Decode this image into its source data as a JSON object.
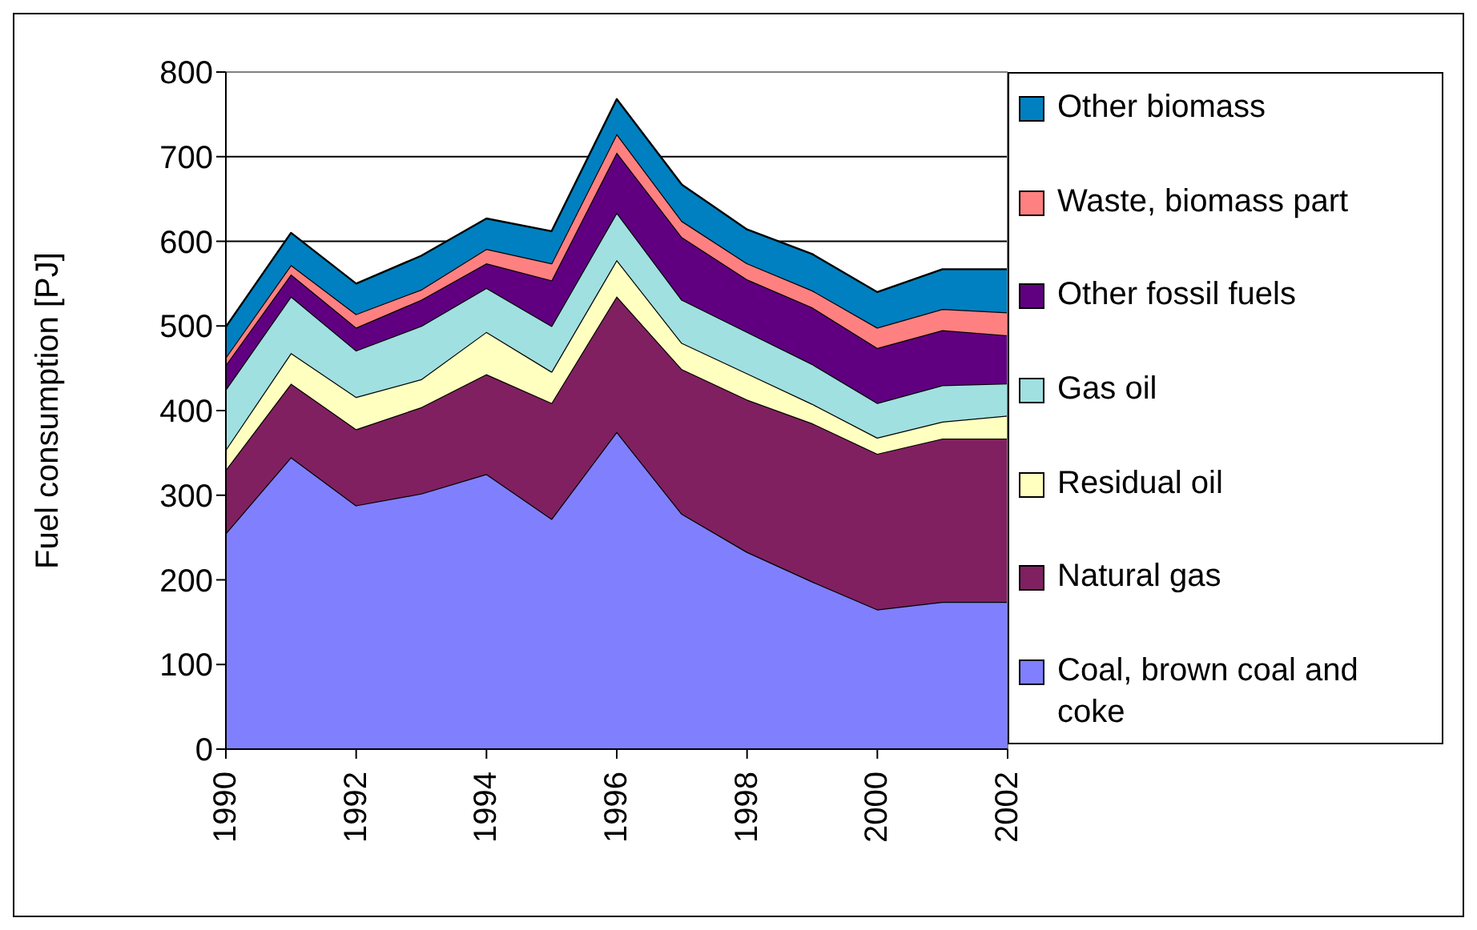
{
  "chart_data": {
    "type": "area",
    "stacked": true,
    "ylabel": "Fuel consumption [PJ]",
    "x": [
      1990,
      1991,
      1992,
      1993,
      1994,
      1995,
      1996,
      1997,
      1998,
      1999,
      2000,
      2001,
      2002
    ],
    "xlim": [
      1990,
      2002
    ],
    "xticks": [
      1990,
      1992,
      1994,
      1996,
      1998,
      2000,
      2002
    ],
    "ylim": [
      0,
      800
    ],
    "yticks": [
      0,
      100,
      200,
      300,
      400,
      500,
      600,
      700,
      800
    ],
    "grid": "y",
    "legend": "right",
    "series": [
      {
        "name": "Coal, brown coal and coke",
        "color": "#8080ff",
        "values": [
          255,
          345,
          288,
          302,
          325,
          272,
          375,
          278,
          233,
          198,
          165,
          174,
          174
        ]
      },
      {
        "name": "Natural gas",
        "color": "#802060",
        "values": [
          75,
          87,
          90,
          102,
          118,
          137,
          160,
          171,
          180,
          187,
          184,
          193,
          193
        ]
      },
      {
        "name": "Residual oil",
        "color": "#ffffc0",
        "values": [
          24,
          36,
          38,
          33,
          50,
          37,
          43,
          31,
          31,
          23,
          19,
          20,
          27
        ]
      },
      {
        "name": "Gas oil",
        "color": "#a0e0e0",
        "values": [
          71,
          67,
          55,
          63,
          52,
          54,
          56,
          51,
          49,
          47,
          41,
          43,
          38
        ]
      },
      {
        "name": "Other fossil fuels",
        "color": "#600080",
        "values": [
          29,
          26,
          27,
          31,
          29,
          54,
          71,
          74,
          62,
          67,
          65,
          65,
          57
        ]
      },
      {
        "name": "Waste, biomass part",
        "color": "#ff8080",
        "values": [
          9,
          11,
          16,
          12,
          17,
          20,
          22,
          19,
          19,
          20,
          24,
          25,
          27
        ]
      },
      {
        "name": "Other biomass",
        "color": "#0080c0",
        "values": [
          36,
          38,
          36,
          40,
          36,
          38,
          41,
          43,
          40,
          43,
          42,
          47,
          51
        ]
      }
    ]
  }
}
